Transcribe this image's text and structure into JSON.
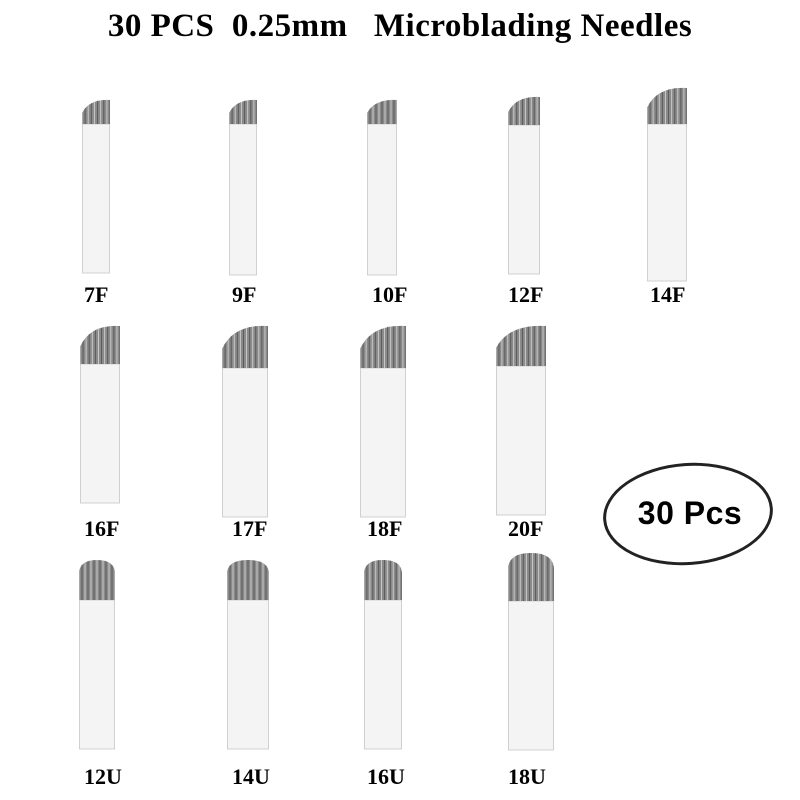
{
  "title": "30 PCS  0.25mm   Microblading Needles",
  "badge": {
    "text": "30 Pcs"
  },
  "needles": [
    {
      "label": "7F",
      "type": "F"
    },
    {
      "label": "9F",
      "type": "F"
    },
    {
      "label": "10F",
      "type": "F"
    },
    {
      "label": "12F",
      "type": "F"
    },
    {
      "label": "14F",
      "type": "F"
    },
    {
      "label": "16F",
      "type": "F"
    },
    {
      "label": "17F",
      "type": "F"
    },
    {
      "label": "18F",
      "type": "F"
    },
    {
      "label": "20F",
      "type": "F"
    },
    {
      "label": "12U",
      "type": "U"
    },
    {
      "label": "14U",
      "type": "U"
    },
    {
      "label": "16U",
      "type": "U"
    },
    {
      "label": "18U",
      "type": "U"
    }
  ]
}
